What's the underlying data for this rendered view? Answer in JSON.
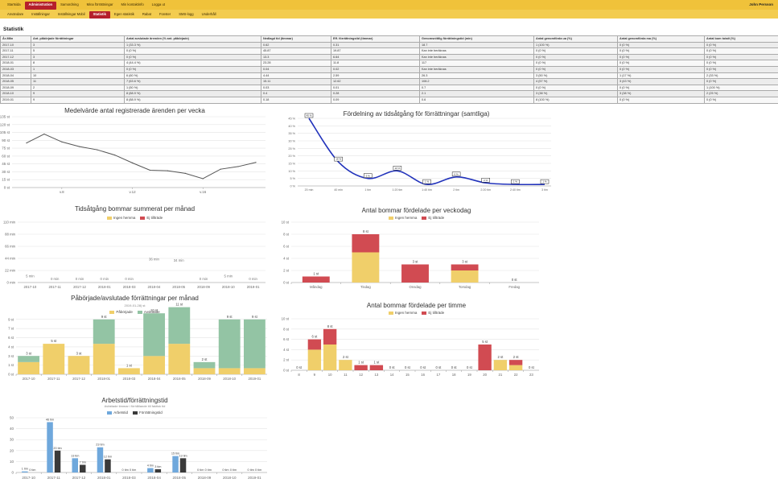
{
  "header": {
    "nav": [
      {
        "label": "Startsida",
        "active": false
      },
      {
        "label": "Administration",
        "active": true
      },
      {
        "label": "Samordning",
        "active": false
      },
      {
        "label": "Mina förrättningar",
        "active": false
      },
      {
        "label": "Min kontaktinfo",
        "active": false
      },
      {
        "label": "Logga ut",
        "active": false
      }
    ],
    "subnav": [
      {
        "label": "Användare",
        "active": false
      },
      {
        "label": "Inställningar",
        "active": false
      },
      {
        "label": "Inställningar Mobil",
        "active": false
      },
      {
        "label": "Statistik",
        "active": true
      },
      {
        "label": "Egen statistik",
        "active": false
      },
      {
        "label": "Rabat",
        "active": false
      },
      {
        "label": "Fonster",
        "active": false
      },
      {
        "label": "SMS-logg",
        "active": false
      },
      {
        "label": "Underhåll",
        "active": false
      }
    ],
    "user": "John Persson"
  },
  "page_title": "Statistik",
  "table": {
    "columns": [
      "År-Mån",
      "Ant. påbörjade förrättningar",
      "Antal avslutade ärenden (% ant. påbörjade)",
      "Nedlagd tid (timmar)",
      "Eff. förrättningstid (timmar)",
      "Genomsnittlig förrättningstid (min)",
      "Antal genomförda ua (%)",
      "Antal genomförda ma (%)",
      "Antal bom totalt (%)"
    ],
    "rows": [
      [
        "2017-10",
        "3",
        "1 (33.3 %)",
        "0.62",
        "0.31",
        "18.7",
        "1 (100 %)",
        "0 (0 %)",
        "0 (0 %)"
      ],
      [
        "2017-11",
        "5",
        "0 (0 %)",
        "45.87",
        "19.87",
        "Kan inte beräknas",
        "0 (0 %)",
        "0 (0 %)",
        "0 (0 %)"
      ],
      [
        "2017-12",
        "3",
        "0 (0 %)",
        "13.3",
        "6.64",
        "Kan inte beräknas",
        "0 (0 %)",
        "0 (0 %)",
        "0 (0 %)"
      ],
      [
        "2018-01",
        "8",
        "4 (44.4 %)",
        "23.28",
        "11.8",
        "117",
        "0 (0 %)",
        "0 (0 %)",
        "0 (0 %)"
      ],
      [
        "2018-03",
        "1",
        "0 (0 %)",
        "0.04",
        "0.02",
        "Kan inte beräknas",
        "0 (0 %)",
        "0 (0 %)",
        "0 (0 %)"
      ],
      [
        "2018-04",
        "10",
        "6 (60 %)",
        "4.44",
        "2.59",
        "26.3",
        "3 (50 %)",
        "1 (17 %)",
        "2 (33 %)"
      ],
      [
        "2018-05",
        "11",
        "7 (63.6 %)",
        "15.11",
        "12.62",
        "108.2",
        "4 (57 %)",
        "3 (43 %)",
        "0 (0 %)"
      ],
      [
        "2018-09",
        "2",
        "1 (50 %)",
        "0.03",
        "0.01",
        "0.7",
        "0 (0 %)",
        "0 (0 %)",
        "1 (100 %)"
      ],
      [
        "2018-10",
        "9",
        "8 (88.9 %)",
        "0.4",
        "0.28",
        "2.1",
        "3 (38 %)",
        "3 (38 %)",
        "2 (25 %)"
      ],
      [
        "2019-01",
        "9",
        "8 (88.9 %)",
        "0.18",
        "0.09",
        "0.6",
        "8 (100 %)",
        "0 (0 %)",
        "0 (0 %)"
      ]
    ]
  },
  "chart_data": [
    {
      "type": "line",
      "title": "Medelvärde antal registrerade ärenden per vecka",
      "y_ticks": [
        "0 st",
        "15 st",
        "30 st",
        "45 st",
        "60 st",
        "75 st",
        "90 st",
        "105 st",
        "120 st",
        "135 st"
      ],
      "x_tick_labels": [
        "v.8",
        "v.12",
        "v.16"
      ],
      "x_tick_index": [
        2,
        6,
        10
      ],
      "values": [
        85,
        102,
        87,
        78,
        72,
        62,
        47,
        33,
        32,
        27,
        17,
        35,
        40,
        48
      ],
      "ylim": [
        0,
        135
      ],
      "color": "#555555"
    },
    {
      "type": "line",
      "title": "Fördelning av tidsåtgång för förrättningar (samtliga)",
      "categories": [
        "20 min",
        "40 min",
        "1 tim",
        "1:20 tim",
        "1:40 tim",
        "2 tim",
        "2:20 tim",
        "2:40 tim",
        "3 tim"
      ],
      "values": [
        45,
        16,
        5,
        10,
        1,
        6,
        2,
        1,
        1
      ],
      "value_labels": [
        "45 %",
        "16 %",
        "5 %",
        "10 %",
        "1 %",
        "6 %",
        "2 %",
        "1 %",
        "1 %"
      ],
      "y_ticks": [
        "0 %",
        "5 %",
        "10 %",
        "15 %",
        "20 %",
        "25 %",
        "30 %",
        "35 %",
        "40 %",
        "45 %"
      ],
      "ylim": [
        0,
        45
      ],
      "color": "#2233bb"
    },
    {
      "type": "bar",
      "title": "Tidsåtgång bommar summerat per månad",
      "legend": [
        "Ingen hemma",
        "Ej tillträde"
      ],
      "colors": [
        "#f0cf6a",
        "#d14b52"
      ],
      "categories": [
        "2017-10",
        "2017-11",
        "2017-12",
        "2018-01",
        "2018-03",
        "2018-04",
        "2018-05",
        "2018-09",
        "2018-10",
        "2019-01"
      ],
      "series": [
        {
          "name": "Ingen hemma",
          "values": [
            0,
            0,
            0,
            0,
            0,
            0,
            0,
            0,
            0,
            0
          ]
        },
        {
          "name": "Ej tillträde",
          "values": [
            0,
            0,
            0,
            0,
            0,
            0,
            0,
            0,
            0,
            0
          ]
        }
      ],
      "bar_labels": [
        "5 min",
        "0 min",
        "0 min",
        "0 min",
        "0 min",
        "36 min",
        "34 min",
        "0 min",
        "5 min",
        "0 min"
      ],
      "bar_label_levels": [
        5,
        0,
        0,
        0,
        0,
        36,
        34,
        0,
        5,
        0
      ],
      "y_ticks": [
        "0 min",
        "22 min",
        "44 min",
        "66 min",
        "88 min",
        "110 min"
      ],
      "ylim": [
        0,
        110
      ]
    },
    {
      "type": "bar",
      "title": "Antal bommar fördelade per veckodag",
      "legend": [
        "Ingen hemma",
        "Ej tillträde"
      ],
      "colors": [
        "#f0cf6a",
        "#d14b52"
      ],
      "categories": [
        "Måndag",
        "Tisdag",
        "Onsdag",
        "Torsdag",
        "Fredag"
      ],
      "series": [
        {
          "name": "Ingen hemma",
          "values": [
            0,
            5,
            0,
            2,
            0
          ]
        },
        {
          "name": "Ej tillträde",
          "values": [
            1,
            3,
            3,
            1,
            0
          ]
        }
      ],
      "totals": [
        "1 st",
        "8 st",
        "3 st",
        "3 st",
        "0 st"
      ],
      "y_ticks": [
        "0 st",
        "2 st",
        "4 st",
        "6 st",
        "8 st",
        "10 st"
      ],
      "ylim": [
        0,
        10
      ]
    },
    {
      "type": "bar",
      "title": "Påbörjade/avslutade förrättningar per månad",
      "subtitle": "2019-01-28) st",
      "legend": [
        "Påbörjade",
        "Avslutade"
      ],
      "colors": [
        "#f0cf6a",
        "#93c4a4"
      ],
      "categories": [
        "2017-10",
        "2017-11",
        "2017-12",
        "2018-01",
        "2018-03",
        "2018-04",
        "2018-05",
        "2018-09",
        "2018-10",
        "2019-01"
      ],
      "series": [
        {
          "name": "Påbörjade",
          "values": [
            2,
            5,
            3,
            5,
            1,
            3,
            5,
            1,
            1,
            1
          ]
        },
        {
          "name": "Avslutade",
          "values": [
            1,
            0,
            0,
            4,
            0,
            7,
            6,
            1,
            8,
            8
          ]
        }
      ],
      "totals": [
        "3 st",
        "5 st",
        "3 st",
        "9 st",
        "1 st",
        "10 st",
        "11 st",
        "2 st",
        "9 st",
        "9 st"
      ],
      "y_ticks": [
        "0 st",
        "1 st",
        "3 st",
        "4 st",
        "6 st",
        "7 st",
        "9 st"
      ],
      "y_tick_values": [
        0,
        1.5,
        3,
        4.5,
        6,
        7.5,
        9
      ],
      "ylim": [
        0,
        9.5
      ]
    },
    {
      "type": "bar",
      "title": "Antal bommar fördelade per timme",
      "legend": [
        "Ingen hemma",
        "Ej tillträde"
      ],
      "colors": [
        "#f0cf6a",
        "#d14b52"
      ],
      "categories": [
        "8",
        "9",
        "10",
        "11",
        "12",
        "13",
        "14",
        "15",
        "16",
        "17",
        "18",
        "19",
        "20",
        "21",
        "22",
        "23"
      ],
      "series": [
        {
          "name": "Ingen hemma",
          "values": [
            0,
            4,
            5,
            2,
            0,
            0,
            0,
            0,
            0,
            0,
            0,
            0,
            0,
            2,
            1,
            0
          ]
        },
        {
          "name": "Ej tillträde",
          "values": [
            0,
            2,
            3,
            0,
            1,
            1,
            0,
            0,
            0,
            0,
            0,
            0,
            5,
            0,
            1,
            0
          ]
        }
      ],
      "totals": [
        "0 st",
        "6 st",
        "8 st",
        "2 st",
        "1 st",
        "1 st",
        "0 st",
        "0 st",
        "0 st",
        "0 st",
        "0 st",
        "0 st",
        "5 st",
        "2 st",
        "2 st",
        "0 st"
      ],
      "x_tick_labels": [
        "8",
        "9",
        "10",
        "11",
        "12",
        "13",
        "14",
        "15",
        "16",
        "17",
        "18",
        "19",
        "20",
        "21",
        "22",
        "23"
      ],
      "y_ticks": [
        "0 st",
        "2 st",
        "4 st",
        "6 st",
        "8 st",
        "10 st"
      ],
      "ylim": [
        0,
        10
      ]
    },
    {
      "type": "bar",
      "title": "Arbetstid/förrättningstid",
      "subtitle": "Avfattade timmar i förhållande till faktisk tid",
      "legend": [
        "Arbetstid",
        "Förrättningstid"
      ],
      "colors": [
        "#6fa8dc",
        "#3a3a3a"
      ],
      "categories": [
        "2017-10",
        "2017-11",
        "2017-12",
        "2018-01",
        "2018-03",
        "2018-04",
        "2018-05",
        "2018-09",
        "2018-10",
        "2019-01"
      ],
      "series": [
        {
          "name": "Arbetstid",
          "values": [
            1,
            46,
            13,
            23,
            0,
            4,
            15,
            0,
            0,
            0
          ]
        },
        {
          "name": "Förrättningstid",
          "values": [
            0,
            20,
            7,
            12,
            0,
            3,
            13,
            0,
            0,
            0
          ]
        }
      ],
      "labels": [
        [
          "1 tim",
          "0 tim"
        ],
        [
          "46 tim",
          "20 tim"
        ],
        [
          "13 tim",
          "7 tim"
        ],
        [
          "23 tim",
          "12 tim"
        ],
        [
          "0 tim",
          "0 tim"
        ],
        [
          "4 tim",
          "3 tim"
        ],
        [
          "15 tim",
          "13 tim"
        ],
        [
          "0 tim",
          "0 tim"
        ],
        [
          "0 tim",
          "0 tim"
        ],
        [
          "0 tim",
          "0 tim"
        ]
      ],
      "y_ticks": [
        "0",
        "10",
        "20",
        "30",
        "40",
        "50"
      ],
      "ylim": [
        0,
        50
      ]
    }
  ]
}
